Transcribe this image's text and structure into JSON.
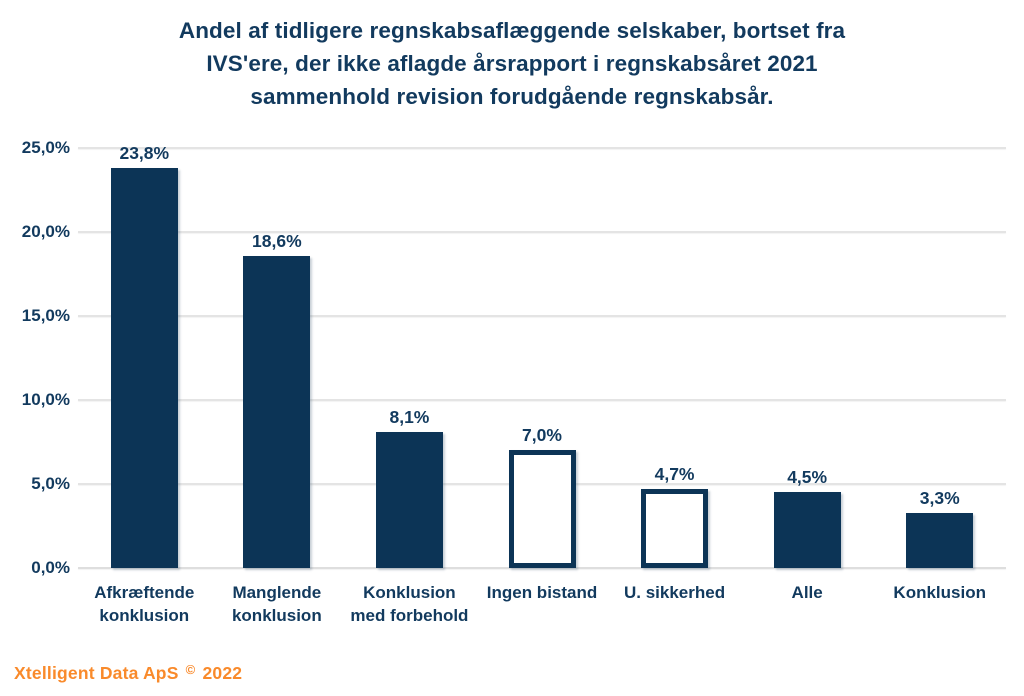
{
  "title": {
    "full": "Andel af tidligere regnskabsaflæggende selskaber, bortset fra IVS'ere, der ikke aflagde årsrapport i regnskabsåret 2021 sammenhold revision forudgående regnskabsår.",
    "lines": [
      "Andel af tidligere regnskabsaflæggende selskaber, bortset fra",
      "IVS'ere, der ikke aflagde årsrapport i regnskabsåret 2021",
      "sammenhold revision forudgående regnskabsår."
    ]
  },
  "footer": {
    "credit_name": "Xtelligent Data ApS",
    "credit_symbol": "©",
    "credit_year": "2022"
  },
  "colors": {
    "bar_navy": "#0c3456",
    "text_navy": "#123a5e",
    "gridline_gray": "#e4e4e4",
    "accent_orange": "#f98a2b",
    "background": "#ffffff"
  },
  "chart_data": {
    "type": "bar",
    "title": "Andel af tidligere regnskabsaflæggende selskaber, bortset fra IVS'ere, der ikke aflagde årsrapport i regnskabsåret 2021 sammenhold revision forudgående regnskabsår.",
    "xlabel": "",
    "ylabel": "",
    "categories": [
      "Afkræftende konklusion",
      "Manglende konklusion",
      "Konklusion med forbehold",
      "Ingen bistand",
      "U. sikkerhed",
      "Alle",
      "Konklusion"
    ],
    "category_display_lines": [
      [
        "Afkræftende",
        "konklusion"
      ],
      [
        "Manglende",
        "konklusion"
      ],
      [
        "Konklusion",
        "med forbehold"
      ],
      [
        "Ingen bistand"
      ],
      [
        "U. sikkerhed"
      ],
      [
        "Alle"
      ],
      [
        "Konklusion"
      ]
    ],
    "values": [
      23.8,
      18.6,
      8.1,
      7.0,
      4.7,
      4.5,
      3.3
    ],
    "value_labels": [
      "23,8%",
      "18,6%",
      "8,1%",
      "7,0%",
      "4,7%",
      "4,5%",
      "3,3%"
    ],
    "bar_fill": [
      "solid",
      "solid",
      "solid",
      "outline",
      "outline",
      "solid",
      "solid"
    ],
    "ylim": [
      0,
      25
    ],
    "y_ticks": [
      {
        "value": 25,
        "label": "25,0%"
      },
      {
        "value": 20,
        "label": "20,0%"
      },
      {
        "value": 15,
        "label": "15,0%"
      },
      {
        "value": 10,
        "label": "10,0%"
      },
      {
        "value": 5,
        "label": "5,0%"
      },
      {
        "value": 0,
        "label": "0,0%"
      }
    ],
    "grid": true,
    "legend": false
  }
}
